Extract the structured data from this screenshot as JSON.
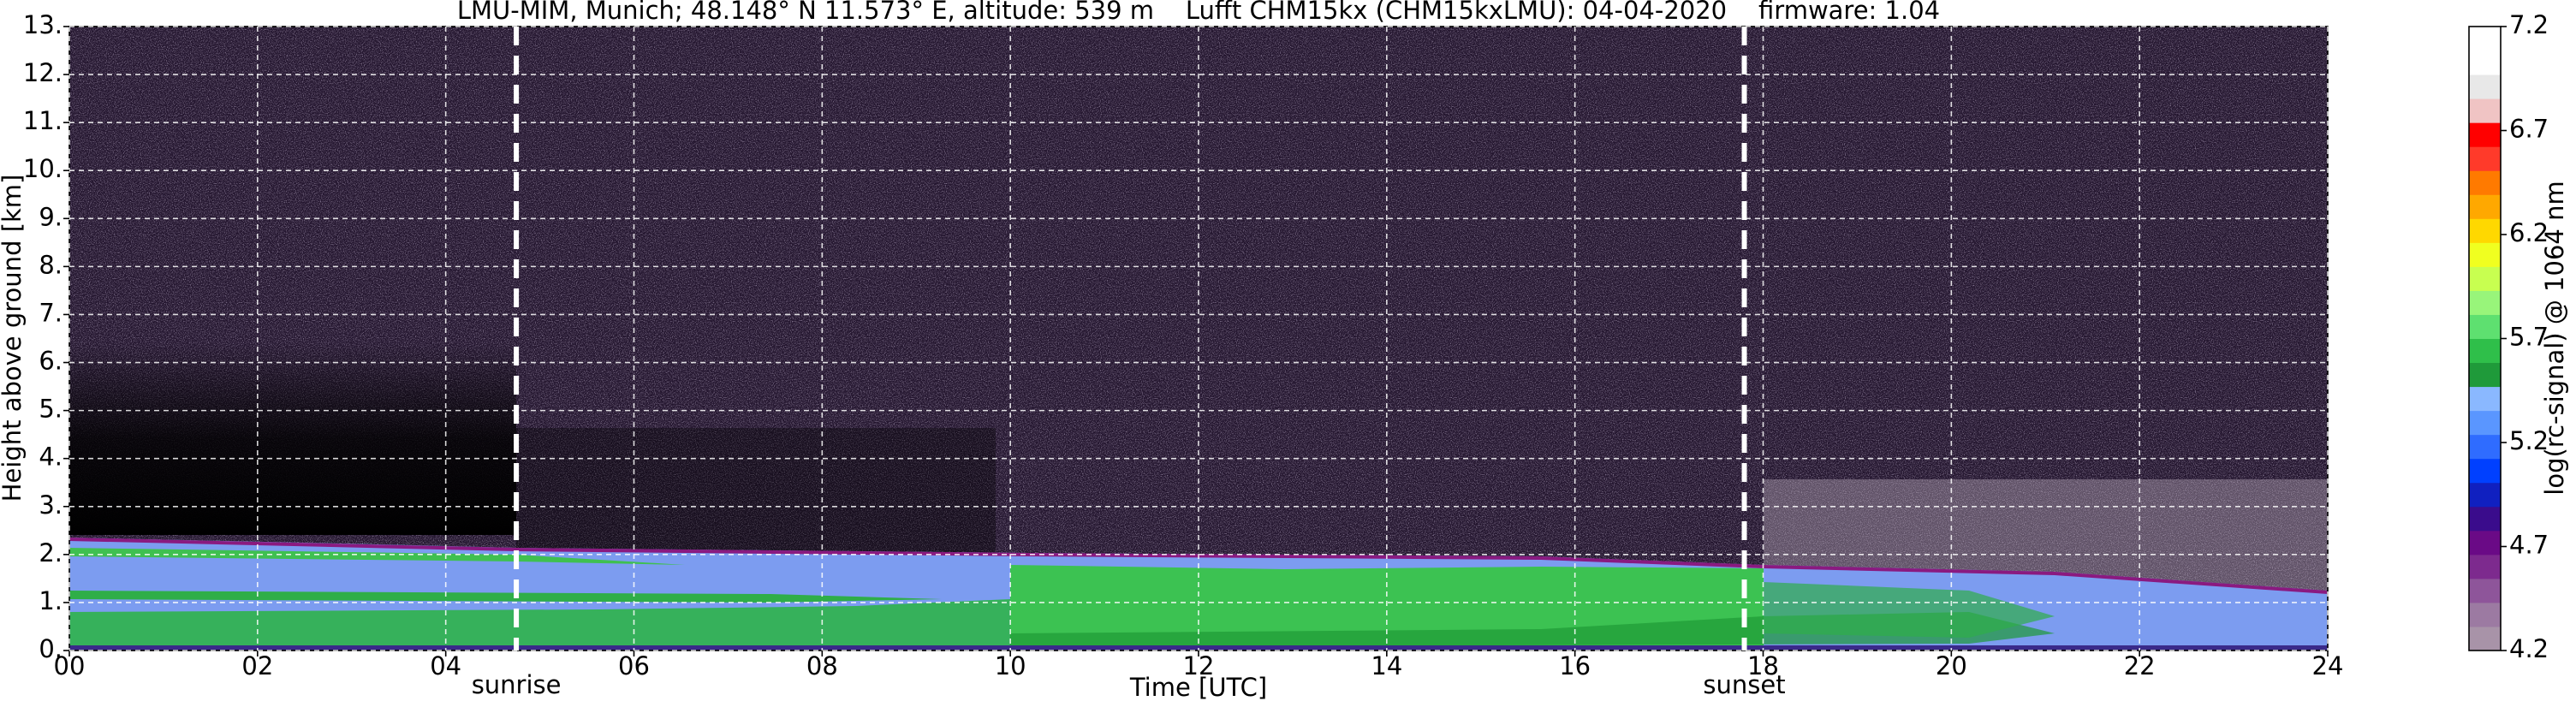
{
  "chart_data": {
    "type": "image",
    "title": "LMU-MIM, Munich; 48.148° N 11.573° E, altitude: 539 m    Lufft CHM15kx (CHM15kxLMU): 04-04-2020    firmware: 1.04",
    "x_label": "Time [UTC]",
    "y_label": "Height above ground [km]",
    "xlim": [
      0,
      24
    ],
    "xticks": [
      {
        "value": 0,
        "label": "00"
      },
      {
        "value": 2,
        "label": "02"
      },
      {
        "value": 4,
        "label": "04"
      },
      {
        "value": 6,
        "label": "06"
      },
      {
        "value": 8,
        "label": "08"
      },
      10,
      12,
      14,
      16,
      18,
      20,
      22,
      24
    ],
    "ylim": [
      0,
      13
    ],
    "yticks": [
      {
        "value": 0,
        "label": "0."
      },
      {
        "value": 1,
        "label": "1."
      },
      {
        "value": 2,
        "label": "2."
      },
      {
        "value": 3,
        "label": "3."
      },
      {
        "value": 4,
        "label": "4."
      },
      {
        "value": 5,
        "label": "5."
      },
      {
        "value": 6,
        "label": "6."
      },
      {
        "value": 7,
        "label": "7."
      },
      {
        "value": 8,
        "label": "8."
      },
      {
        "value": 9,
        "label": "9."
      },
      {
        "value": 10,
        "label": "10."
      },
      {
        "value": 11,
        "label": "11."
      },
      {
        "value": 12,
        "label": "12."
      },
      {
        "value": 13,
        "label": "13."
      }
    ],
    "grid": true,
    "vlines": [
      {
        "x": 4.75,
        "label": "sunrise"
      },
      {
        "x": 17.8,
        "label": "sunset"
      }
    ],
    "colorbar": {
      "label": "log(rc-signal) @ 1064 nm",
      "lim": [
        4.2,
        7.2
      ],
      "ticks": [
        4.2,
        4.7,
        5.2,
        5.7,
        6.2,
        6.7,
        7.2
      ],
      "colors": [
        "#a893a8",
        "#9c7aa2",
        "#8e559a",
        "#7d2a8e",
        "#6a0a86",
        "#3a0c8c",
        "#1020c0",
        "#0040ff",
        "#2f6cff",
        "#5a96ff",
        "#8ab8ff",
        "#1f9a3a",
        "#2fbf4a",
        "#5ee070",
        "#98f57a",
        "#c8ff50",
        "#f0ff20",
        "#ffd800",
        "#ffa800",
        "#ff7a00",
        "#ff3a2a",
        "#ff0000",
        "#f0c4c4",
        "#e8e8e8",
        "#ffffff",
        "#ffffff"
      ]
    }
  }
}
